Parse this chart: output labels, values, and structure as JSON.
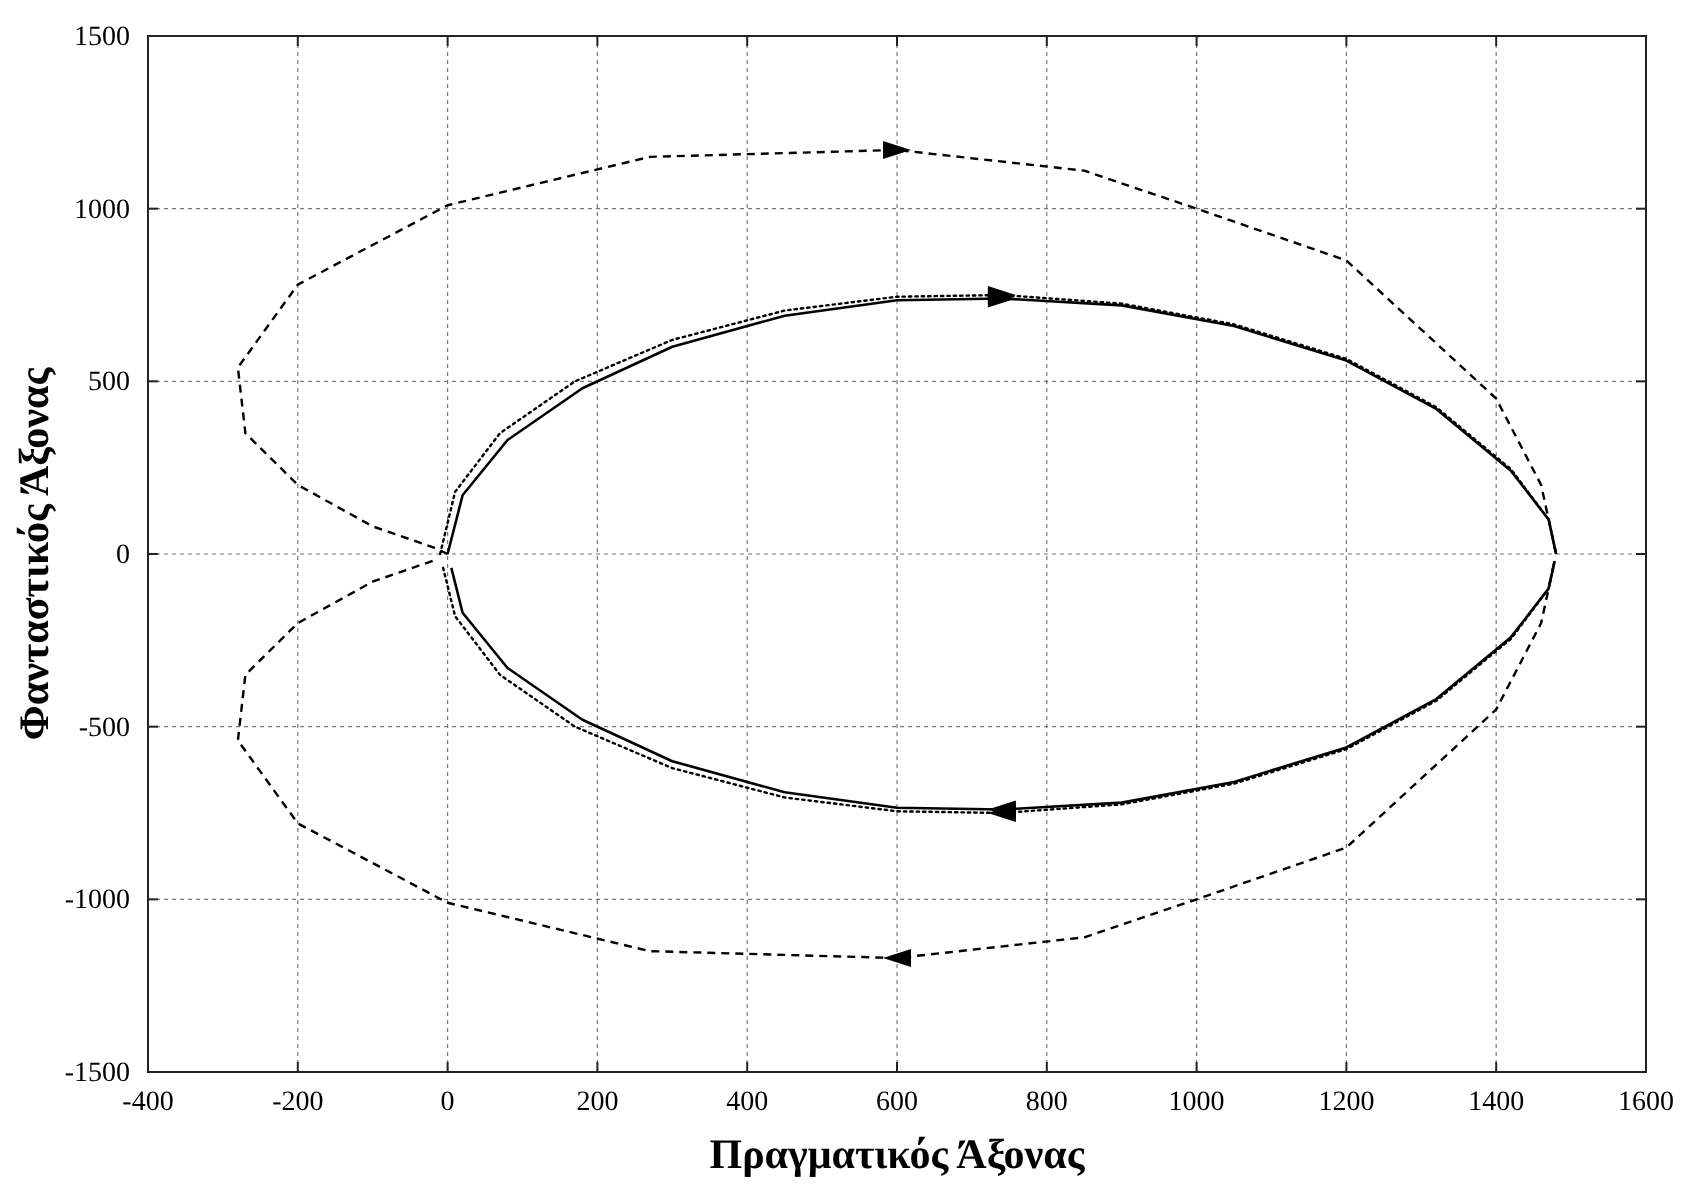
{
  "chart_data": {
    "type": "line",
    "xlabel": "Πραγματικός Άξονας",
    "ylabel": "Φανταστικός Άξονας",
    "xlim": [
      -400,
      1600
    ],
    "ylim": [
      -1500,
      1500
    ],
    "xticks": [
      -400,
      -200,
      0,
      200,
      400,
      600,
      800,
      1000,
      1200,
      1400,
      1600
    ],
    "yticks": [
      -1500,
      -1000,
      -500,
      0,
      500,
      1000,
      1500
    ],
    "grid": true,
    "marker": "none",
    "series": [
      {
        "color": "#000000",
        "line_style": "dashed",
        "x": [
          0,
          -20,
          -100,
          -200,
          -270,
          -280,
          -200,
          0,
          270,
          600,
          850,
          1000,
          1200,
          1300,
          1400,
          1460,
          1480
        ],
        "values": [
          0,
          20,
          80,
          200,
          350,
          540,
          780,
          1010,
          1150,
          1170,
          1110,
          1000,
          850,
          650,
          450,
          200,
          0
        ]
      },
      {
        "color": "#000000",
        "line_style": "dashed",
        "x": [
          -20,
          -100,
          -200,
          -270,
          -280,
          -200,
          0,
          270,
          600,
          850,
          1000,
          1200,
          1300,
          1400,
          1460,
          1478
        ],
        "values": [
          -20,
          -80,
          -200,
          -350,
          -540,
          -780,
          -1010,
          -1150,
          -1170,
          -1110,
          -1000,
          -850,
          -650,
          -450,
          -200,
          -20
        ]
      },
      {
        "color": "#000000",
        "line_style": "solid",
        "x": [
          0,
          20,
          80,
          180,
          300,
          450,
          600,
          740,
          900,
          1050,
          1200,
          1320,
          1420,
          1470,
          1480
        ],
        "values": [
          0,
          170,
          330,
          480,
          600,
          690,
          735,
          740,
          720,
          660,
          560,
          420,
          240,
          100,
          0
        ]
      },
      {
        "color": "#000000",
        "line_style": "solid",
        "x": [
          5,
          20,
          80,
          180,
          300,
          450,
          600,
          740,
          900,
          1050,
          1200,
          1320,
          1420,
          1470,
          1478
        ],
        "values": [
          -40,
          -170,
          -330,
          -480,
          -600,
          -690,
          -735,
          -740,
          -720,
          -660,
          -560,
          -420,
          -240,
          -100,
          -20
        ]
      },
      {
        "color": "#000000",
        "line_style": "dotted",
        "x": [
          -10,
          10,
          70,
          170,
          300,
          450,
          600,
          740,
          900,
          1050,
          1200,
          1320,
          1420,
          1470,
          1480
        ],
        "values": [
          0,
          180,
          350,
          500,
          620,
          705,
          745,
          750,
          725,
          665,
          565,
          425,
          245,
          100,
          0
        ]
      },
      {
        "color": "#000000",
        "line_style": "dotted",
        "x": [
          -6,
          10,
          70,
          170,
          300,
          450,
          600,
          740,
          900,
          1050,
          1200,
          1320,
          1420,
          1470,
          1478
        ],
        "values": [
          -40,
          -180,
          -350,
          -500,
          -620,
          -705,
          -745,
          -750,
          -725,
          -665,
          -565,
          -425,
          -245,
          -100,
          -20
        ]
      }
    ]
  }
}
